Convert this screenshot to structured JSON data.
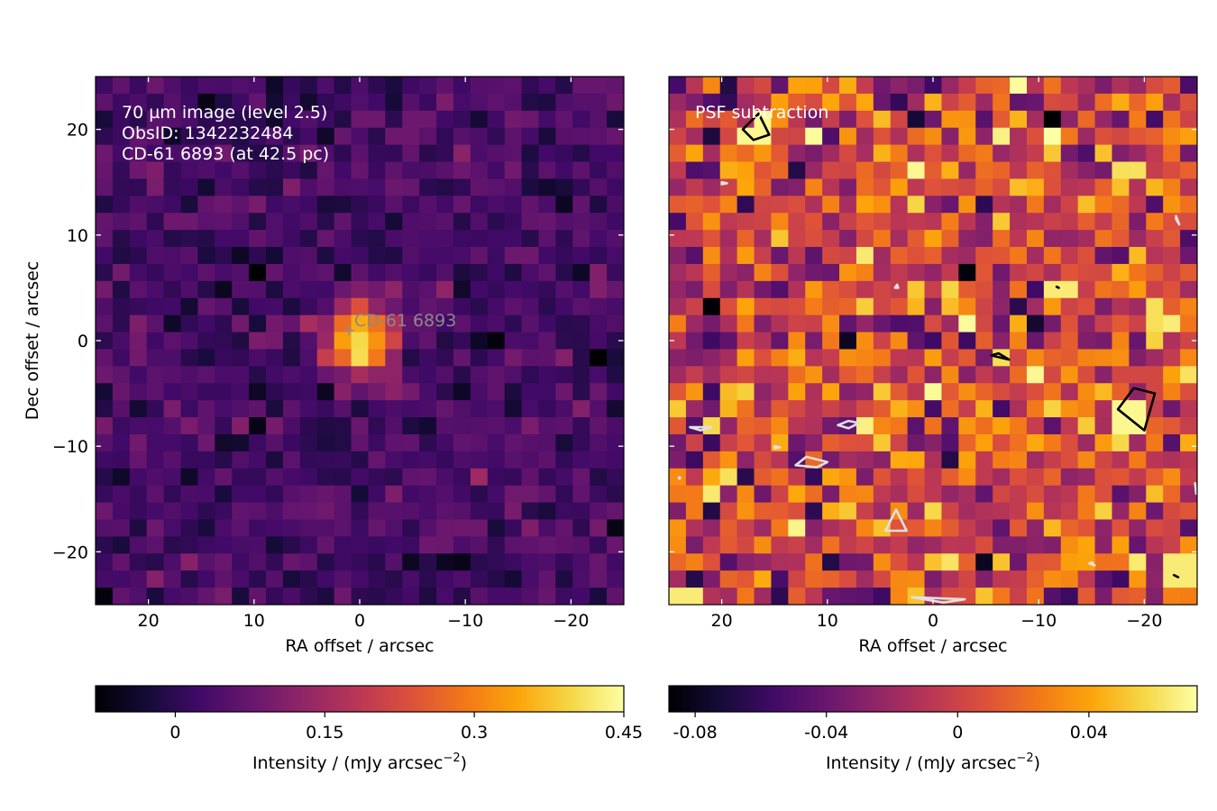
{
  "chart_data": [
    {
      "type": "heatmap",
      "panel": "left",
      "annotation_lines": [
        "70 µm image (level 2.5)",
        "ObsID: 1342232484",
        "CD-61 6893 (at 42.5 pc)"
      ],
      "source_label": "CD-61  6893",
      "source_position": [
        1,
        1
      ],
      "xlabel": "RA offset / arcsec",
      "ylabel": "Dec offset / arcsec",
      "xlim": [
        25,
        -25
      ],
      "ylim": [
        -25,
        25
      ],
      "xticks": [
        20,
        10,
        0,
        -10,
        -20
      ],
      "xtick_labels": [
        "20",
        "10",
        "0",
        "−10",
        "−20"
      ],
      "yticks": [
        20,
        10,
        0,
        -10,
        -20
      ],
      "ytick_labels": [
        "20",
        "10",
        "0",
        "−10",
        "−20"
      ],
      "colormap": "inferno",
      "pixel_grid": 31,
      "source_peak": {
        "x": 0.0,
        "y": 0.0,
        "amplitude": 0.42,
        "sigma": 2.2
      },
      "background": {
        "mean": 0.03,
        "noise": 0.035
      },
      "colorbar": {
        "range": [
          -0.08,
          0.45
        ],
        "ticks": [
          0,
          0.15,
          0.3,
          0.45
        ],
        "tick_labels": [
          "0",
          "0.15",
          "0.3",
          "0.45"
        ],
        "label": "Intensity / (mJy arcsec",
        "label_sup": "−2",
        "label_end": ")"
      }
    },
    {
      "type": "heatmap",
      "panel": "right",
      "annotation_lines": [
        "PSF subtraction"
      ],
      "xlabel": "RA offset / arcsec",
      "xlim": [
        25,
        -25
      ],
      "ylim": [
        -25,
        25
      ],
      "xticks": [
        20,
        10,
        0,
        -10,
        -20
      ],
      "xtick_labels": [
        "20",
        "10",
        "0",
        "−10",
        "−20"
      ],
      "colormap": "inferno",
      "pixel_grid": 31,
      "background": {
        "mean": 0.0,
        "noise": 0.03
      },
      "bright_spots": [
        {
          "x": 16.5,
          "y": 20.0,
          "value": 0.07
        },
        {
          "x": -18.5,
          "y": -7.0,
          "value": 0.07
        },
        {
          "x": -12.5,
          "y": 5.0,
          "value": 0.065
        },
        {
          "x": -6.5,
          "y": -1.5,
          "value": 0.06
        },
        {
          "x": -21.5,
          "y": 2.0,
          "value": 0.06
        },
        {
          "x": -23.5,
          "y": -22.0,
          "value": 0.065
        },
        {
          "x": 23.5,
          "y": -24.0,
          "value": 0.065
        }
      ],
      "contours": {
        "positive_color": "#000000",
        "negative_color": "#e0e0e0",
        "positive": [
          [
            [
              18,
              20
            ],
            [
              16.5,
              21.5
            ],
            [
              15.5,
              19.5
            ],
            [
              17,
              19
            ]
          ],
          [
            [
              -19,
              -4.5
            ],
            [
              -21,
              -5
            ],
            [
              -20,
              -8.5
            ],
            [
              -17.5,
              -6.5
            ]
          ],
          [
            [
              -5.5,
              -1.4
            ],
            [
              -7.2,
              -1.8
            ],
            [
              -6.2,
              -1.2
            ]
          ],
          [
            [
              -11.7,
              5.1
            ],
            [
              -11.9,
              5.0
            ]
          ],
          [
            [
              -22.8,
              -22.2
            ],
            [
              -23.2,
              -22.4
            ]
          ]
        ],
        "negative": [
          [
            [
              20,
              14.8
            ],
            [
              19.5,
              14.9
            ],
            [
              20,
              15.0
            ]
          ],
          [
            [
              3.5,
              -16
            ],
            [
              2.5,
              -18
            ],
            [
              4.5,
              -18
            ]
          ],
          [
            [
              9,
              -8
            ],
            [
              8,
              -8.3
            ],
            [
              7,
              -7.8
            ],
            [
              8,
              -7.6
            ]
          ],
          [
            [
              10,
              -11.5
            ],
            [
              12,
              -11
            ],
            [
              13,
              -11.8
            ],
            [
              11,
              -12
            ]
          ],
          [
            [
              23,
              -8.2
            ],
            [
              22,
              -8.5
            ],
            [
              21,
              -8.2
            ]
          ],
          [
            [
              15,
              -10
            ],
            [
              14.5,
              -10.1
            ],
            [
              15,
              -10.2
            ]
          ],
          [
            [
              -23,
              11.5
            ],
            [
              -23.3,
              11
            ],
            [
              -23,
              11.8
            ]
          ],
          [
            [
              -15,
              -21
            ],
            [
              -15.3,
              -21.3
            ],
            [
              -14.8,
              -21.1
            ]
          ],
          [
            [
              24,
              -13
            ]
          ],
          [
            [
              -3,
              -24.5
            ],
            [
              -1,
              -24.8
            ],
            [
              2,
              -24.3
            ]
          ],
          [
            [
              3.4,
              5.3
            ],
            [
              3.6,
              5.0
            ],
            [
              3.3,
              5.0
            ]
          ],
          [
            [
              -24.8,
              -13.5
            ],
            [
              -24.9,
              -14.5
            ]
          ]
        ]
      },
      "colorbar": {
        "range": [
          -0.088,
          0.073
        ],
        "ticks": [
          -0.08,
          -0.04,
          0,
          0.04
        ],
        "tick_labels": [
          "-0.08",
          "-0.04",
          "0",
          "0.04"
        ],
        "label": "Intensity / (mJy arcsec",
        "label_sup": "−2",
        "label_end": ")"
      }
    }
  ]
}
